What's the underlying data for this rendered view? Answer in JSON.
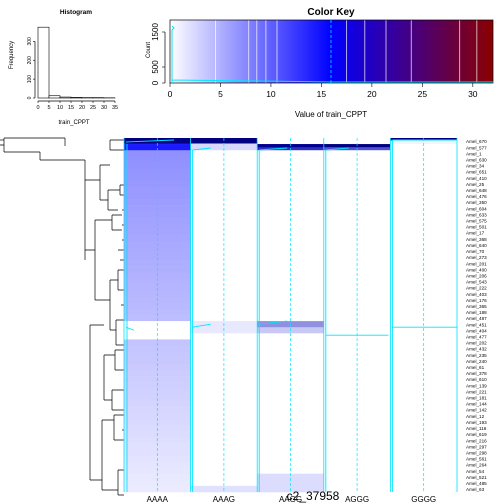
{
  "colors": {
    "low": "#ffffff",
    "mid": "#0000ff",
    "high": "#8b0000",
    "trace": "#00e5ff",
    "hist_bar": "#ffffff",
    "axis": "#000000"
  },
  "histogram": {
    "title": "Histogram",
    "xlabel": "train_CPPT",
    "ylabel": "Frequency",
    "x_ticks": [
      "0",
      "5",
      "10",
      "15",
      "20",
      "25",
      "30",
      "35"
    ],
    "y_ticks": [
      "0",
      "100",
      "200",
      "300"
    ],
    "bins": [
      {
        "from": 0,
        "to": 5,
        "count": 375
      },
      {
        "from": 5,
        "to": 10,
        "count": 12
      },
      {
        "from": 10,
        "to": 15,
        "count": 5
      },
      {
        "from": 15,
        "to": 20,
        "count": 3
      },
      {
        "from": 20,
        "to": 25,
        "count": 2
      },
      {
        "from": 25,
        "to": 30,
        "count": 2
      },
      {
        "from": 30,
        "to": 35,
        "count": 1
      }
    ]
  },
  "color_key": {
    "title": "Color Key",
    "xlabel": "Value of train_CPPT",
    "ylabel": "Count",
    "x_ticks": [
      "0",
      "5",
      "10",
      "15",
      "20",
      "25",
      "30"
    ],
    "y_ticks": [
      "0",
      "500",
      "1500"
    ]
  },
  "chart_data": {
    "type": "heatmap",
    "title": "",
    "xlabel": "c2_37958",
    "ylabel": "",
    "columns": [
      "AAAA",
      "AAAG",
      "AAGG",
      "AGGG",
      "GGGG"
    ],
    "rows": [
      "Amel_670",
      "Amel_577",
      "Amel_1",
      "Amel_630",
      "Amel_34",
      "Amel_651",
      "Amel_410",
      "Amel_25",
      "Amel_648",
      "Amel_476",
      "Amel_350",
      "Amel_604",
      "Amel_633",
      "Amel_575",
      "Amel_501",
      "Amel_17",
      "Amel_368",
      "Amel_640",
      "Amel_70",
      "Amel_273",
      "Amel_201",
      "Amel_400",
      "Amel_206",
      "Amel_543",
      "Amel_222",
      "Amel_403",
      "Amel_176",
      "Amel_365",
      "Amel_188",
      "Amel_487",
      "Amel_451",
      "Amel_404",
      "Amel_477",
      "Amel_202",
      "Amel_432",
      "Amel_235",
      "Amel_240",
      "Amel_61",
      "Amel_378",
      "Amel_610",
      "Amel_139",
      "Amel_221",
      "Amel_181",
      "Amel_144",
      "Amel_142",
      "Amel_12",
      "Amel_193",
      "Amel_116",
      "Amel_619",
      "Amel_216",
      "Amel_297",
      "Amel_298",
      "Amel_561",
      "Amel_264",
      "Amel_54",
      "Amel_521",
      "Amel_485",
      "Amel_63"
    ],
    "value_range": [
      0,
      32
    ]
  }
}
